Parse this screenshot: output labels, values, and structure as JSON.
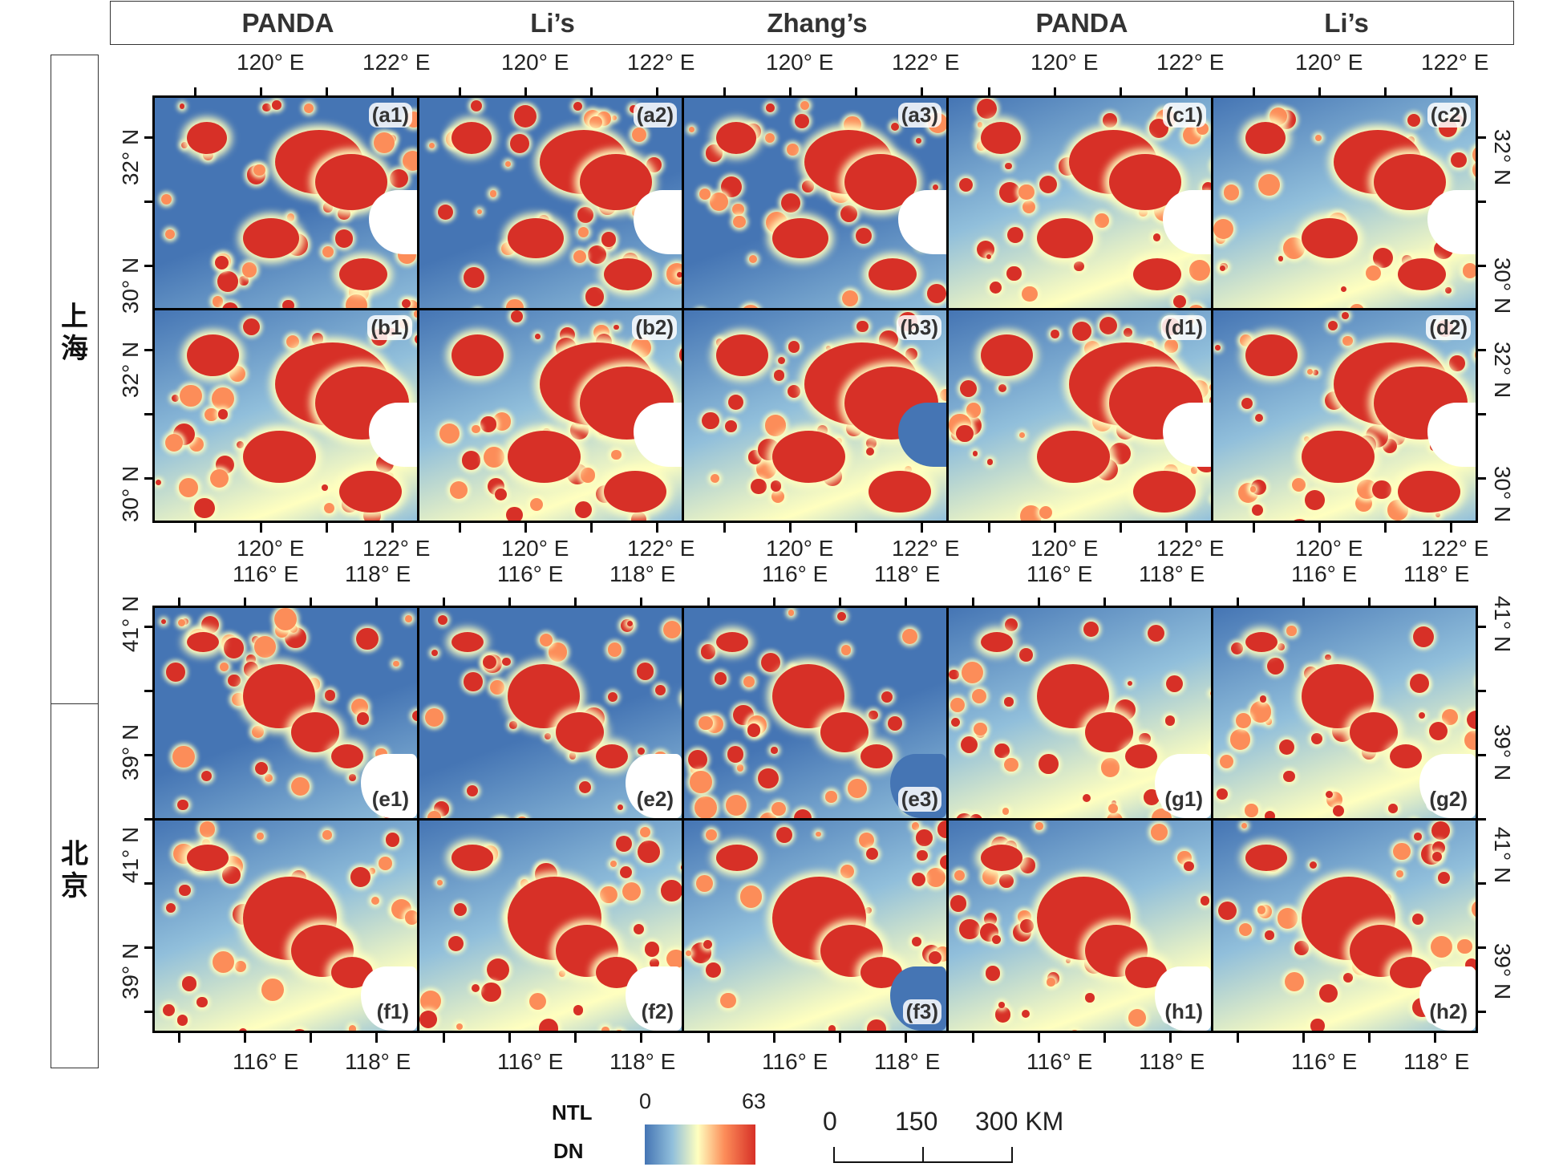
{
  "column_titles": [
    "PANDA",
    "Li’s",
    "Zhang’s",
    "PANDA",
    "Li’s"
  ],
  "region_labels": {
    "shanghai": "上海",
    "beijing": "北京"
  },
  "shanghai_axes": {
    "lon_labels": [
      "120° E",
      "122° E"
    ],
    "lat_labels": [
      "32° N",
      "30° N"
    ]
  },
  "beijing_axes": {
    "lon_labels": [
      "116° E",
      "118° E"
    ],
    "lat_labels": [
      "41° N",
      "39° N"
    ]
  },
  "panels": {
    "row_a": [
      "(a1)",
      "(a2)",
      "(a3)",
      "(c1)",
      "(c2)"
    ],
    "row_b": [
      "(b1)",
      "(b2)",
      "(b3)",
      "(d1)",
      "(d2)"
    ],
    "row_e": [
      "(e1)",
      "(e2)",
      "(e3)",
      "(g1)",
      "(g2)"
    ],
    "row_f": [
      "(f1)",
      "(f2)",
      "(f3)",
      "(h1)",
      "(h2)"
    ]
  },
  "legend": {
    "title_line1": "NTL",
    "title_line2": "DN",
    "min": "0",
    "max": "63",
    "colors": [
      "#4575b4",
      "#91bfdb",
      "#ffffbf",
      "#fc8d59",
      "#d73027"
    ]
  },
  "scale_bar": {
    "labels": [
      "0",
      "150",
      "300 KM"
    ]
  }
}
